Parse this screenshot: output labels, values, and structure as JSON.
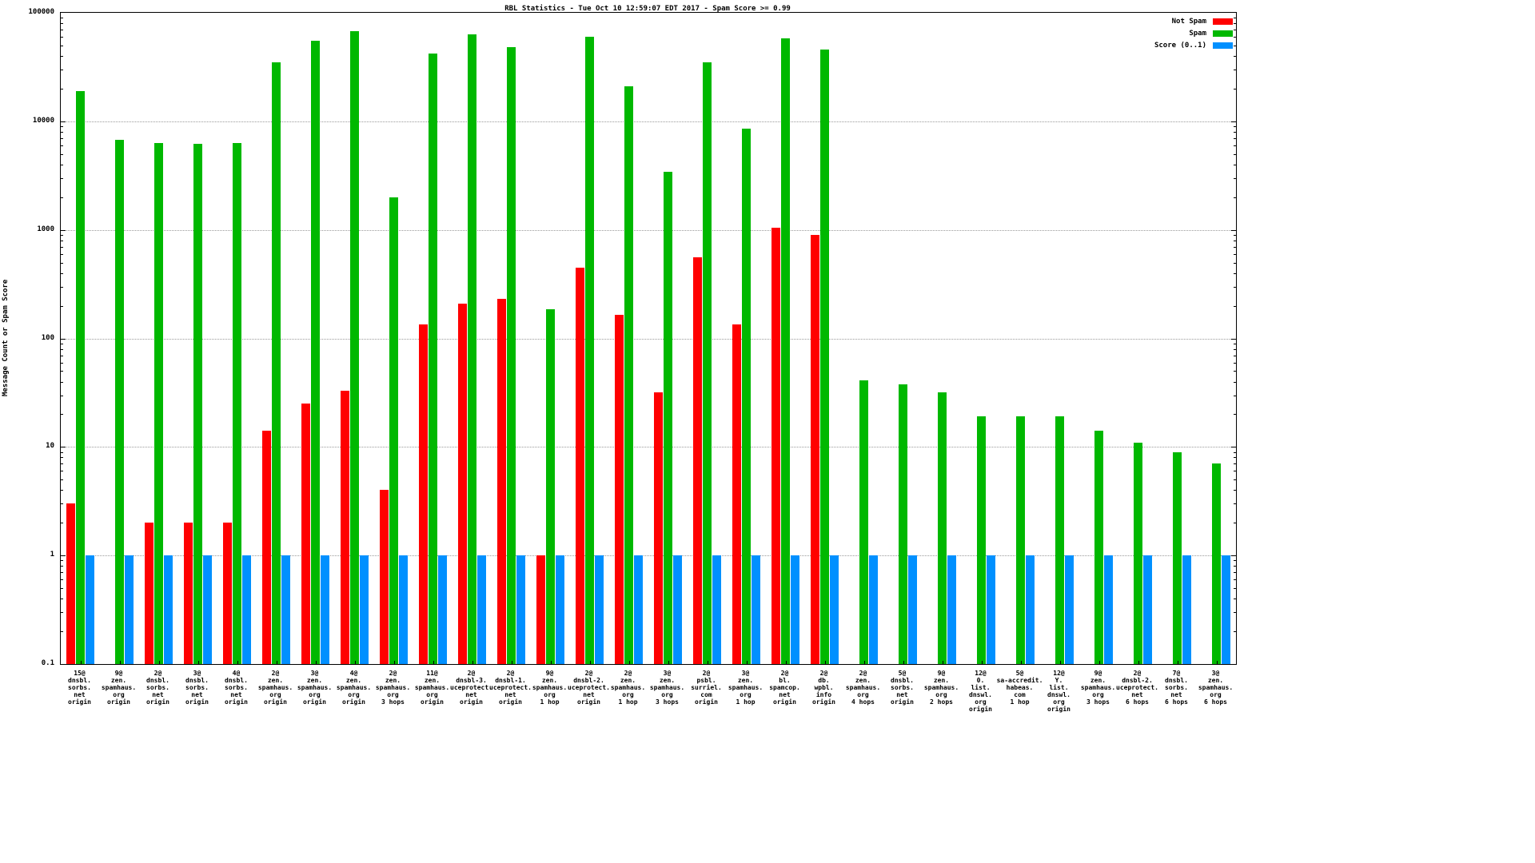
{
  "chart_data": {
    "type": "bar",
    "scale": "log-y",
    "title": "RBL Statistics - Tue Oct 10 12:59:07 EDT 2017 - Spam Score >= 0.99",
    "ylabel": "Message Count or Spam Score",
    "xlabel": "",
    "ylim": [
      0.1,
      100000
    ],
    "yticks": [
      0.1,
      1,
      10,
      100,
      1000,
      10000,
      100000
    ],
    "ytick_labels": [
      "0.1",
      "1",
      "10",
      "100",
      "1000",
      "10000",
      "100000"
    ],
    "grid": "horizontal-dotted",
    "legend_position": "top-right",
    "background_color": "#ffffff",
    "categories": [
      [
        "15@",
        "dnsbl.",
        "sorbs.",
        "net",
        "origin"
      ],
      [
        "9@",
        "zen.",
        "spamhaus.",
        "org",
        "origin"
      ],
      [
        "2@",
        "dnsbl.",
        "sorbs.",
        "net",
        "origin"
      ],
      [
        "3@",
        "dnsbl.",
        "sorbs.",
        "net",
        "origin"
      ],
      [
        "4@",
        "dnsbl.",
        "sorbs.",
        "net",
        "origin"
      ],
      [
        "2@",
        "zen.",
        "spamhaus.",
        "org",
        "origin"
      ],
      [
        "3@",
        "zen.",
        "spamhaus.",
        "org",
        "origin"
      ],
      [
        "4@",
        "zen.",
        "spamhaus.",
        "org",
        "origin"
      ],
      [
        "2@",
        "zen.",
        "spamhaus.",
        "org",
        "3 hops"
      ],
      [
        "11@",
        "zen.",
        "spamhaus.",
        "org",
        "origin"
      ],
      [
        "2@",
        "dnsbl-3.",
        "uceprotect.",
        "net",
        "origin"
      ],
      [
        "2@",
        "dnsbl-1.",
        "uceprotect.",
        "net",
        "origin"
      ],
      [
        "9@",
        "zen.",
        "spamhaus.",
        "org",
        "1 hop"
      ],
      [
        "2@",
        "dnsbl-2.",
        "uceprotect.",
        "net",
        "origin"
      ],
      [
        "2@",
        "zen.",
        "spamhaus.",
        "org",
        "1 hop"
      ],
      [
        "3@",
        "zen.",
        "spamhaus.",
        "org",
        "3 hops"
      ],
      [
        "2@",
        "psbl.",
        "surriel.",
        "com",
        "origin"
      ],
      [
        "3@",
        "zen.",
        "spamhaus.",
        "org",
        "1 hop"
      ],
      [
        "2@",
        "bl.",
        "spamcop.",
        "net",
        "origin"
      ],
      [
        "2@",
        "db.",
        "wpbl.",
        "info",
        "origin"
      ],
      [
        "2@",
        "zen.",
        "spamhaus.",
        "org",
        "4 hops"
      ],
      [
        "5@",
        "dnsbl.",
        "sorbs.",
        "net",
        "origin"
      ],
      [
        "9@",
        "zen.",
        "spamhaus.",
        "org",
        "2 hops"
      ],
      [
        "12@",
        "0.",
        "list.",
        "dnswl.",
        "org",
        "origin"
      ],
      [
        "5@",
        "sa-accredit.",
        "habeas.",
        "com",
        "1 hop"
      ],
      [
        "12@",
        "Y.",
        "list.",
        "dnswl.",
        "org",
        "origin"
      ],
      [
        "9@",
        "zen.",
        "spamhaus.",
        "org",
        "3 hops"
      ],
      [
        "2@",
        "dnsbl-2.",
        "uceprotect.",
        "net",
        "6 hops"
      ],
      [
        "7@",
        "dnsbl.",
        "sorbs.",
        "net",
        "6 hops"
      ],
      [
        "3@",
        "zen.",
        "spamhaus.",
        "org",
        "6 hops"
      ]
    ],
    "series": [
      {
        "name": "Not Spam",
        "color": "#ff0000",
        "values": [
          3,
          null,
          2,
          2,
          2,
          14,
          25,
          33,
          4,
          135,
          210,
          230,
          1,
          450,
          165,
          32,
          560,
          135,
          1050,
          900,
          null,
          null,
          null,
          null,
          null,
          null,
          null,
          null,
          null,
          null
        ]
      },
      {
        "name": "Spam",
        "color": "#00b800",
        "values": [
          19000,
          6800,
          6300,
          6200,
          6300,
          35000,
          55000,
          68000,
          2000,
          42000,
          63000,
          48000,
          185,
          60000,
          21000,
          3400,
          35000,
          8500,
          58000,
          46000,
          41,
          38,
          32,
          19,
          19,
          19,
          14,
          11,
          9,
          7
        ]
      },
      {
        "name": "Score (0..1)",
        "color": "#0090ff",
        "values": [
          1,
          1,
          1,
          1,
          1,
          1,
          1,
          1,
          1,
          1,
          1,
          1,
          1,
          1,
          1,
          1,
          1,
          1,
          1,
          1,
          1,
          1,
          1,
          1,
          1,
          1,
          1,
          1,
          1,
          1
        ]
      }
    ]
  }
}
